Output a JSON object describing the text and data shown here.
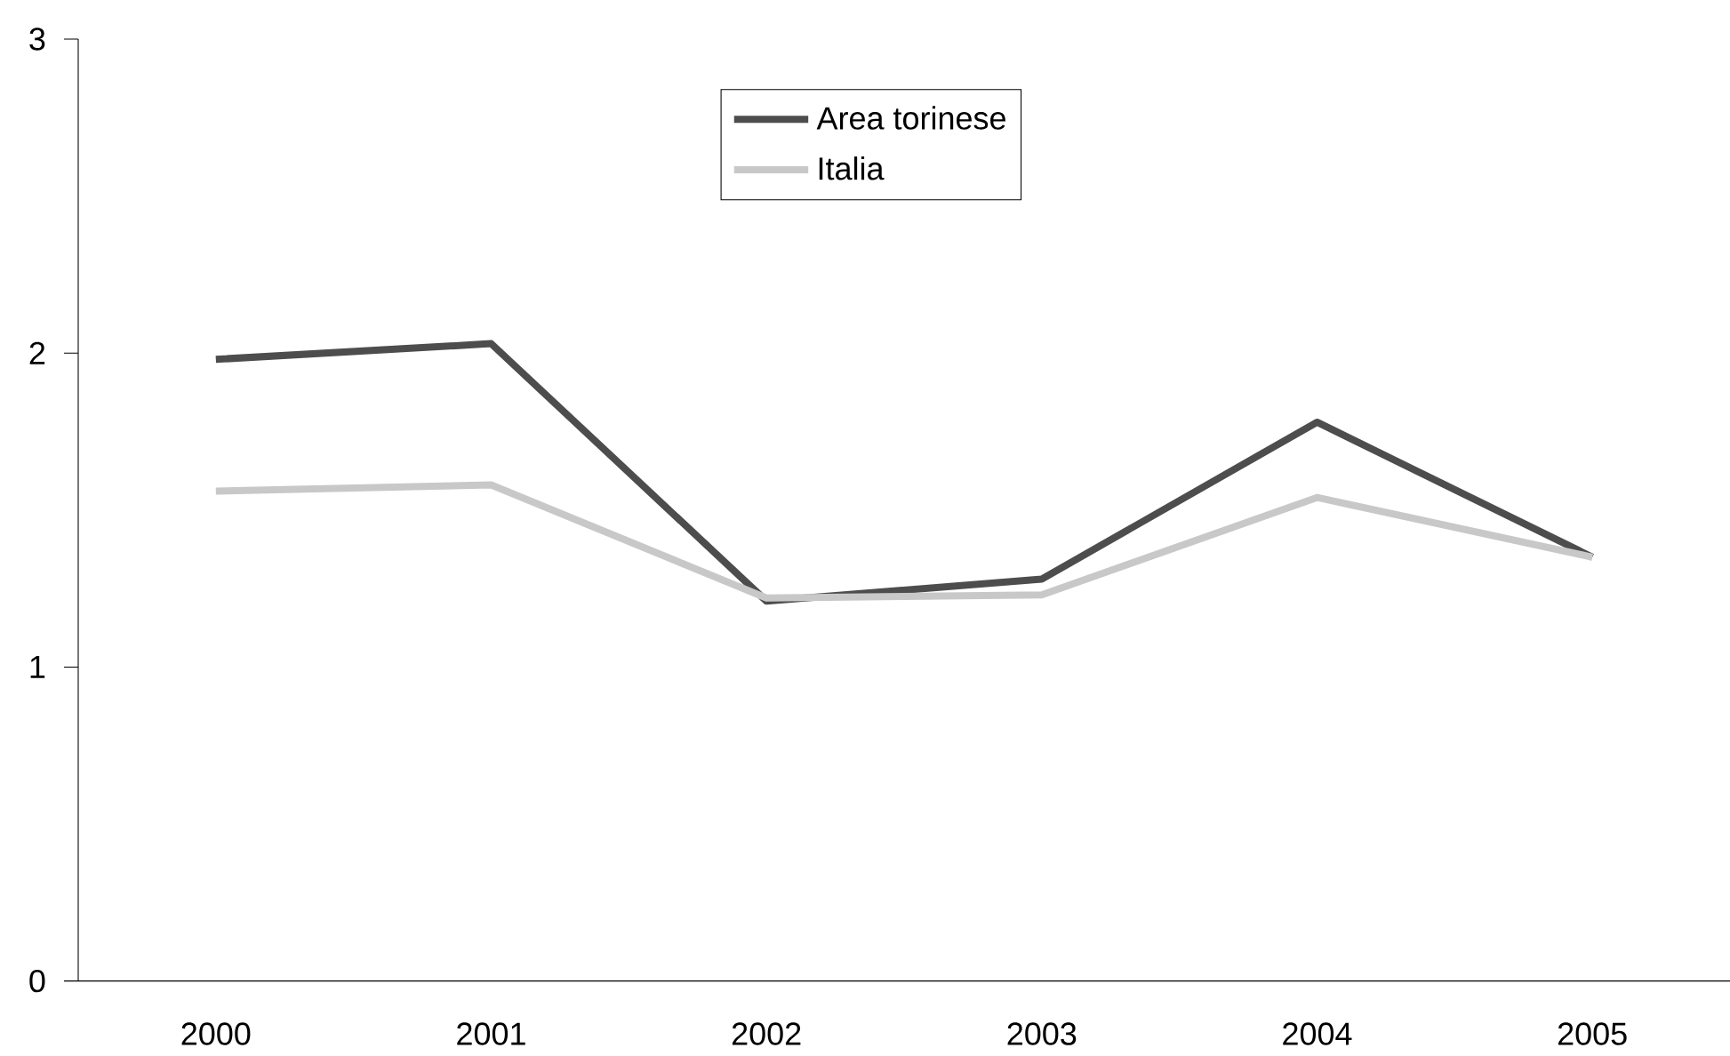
{
  "chart_data": {
    "type": "line",
    "categories": [
      "2000",
      "2001",
      "2002",
      "2003",
      "2004",
      "2005"
    ],
    "series": [
      {
        "name": "Area torinese",
        "color": "#4d4d4d",
        "values": [
          1.98,
          2.03,
          1.21,
          1.28,
          1.78,
          1.35
        ]
      },
      {
        "name": "Italia",
        "color": "#c8c8c8",
        "values": [
          1.56,
          1.58,
          1.22,
          1.23,
          1.54,
          1.35
        ]
      }
    ],
    "ylim": [
      0,
      3
    ],
    "yticks": [
      0,
      1,
      2,
      3
    ],
    "legend": "top",
    "marker": "none",
    "line_style": "solid"
  }
}
